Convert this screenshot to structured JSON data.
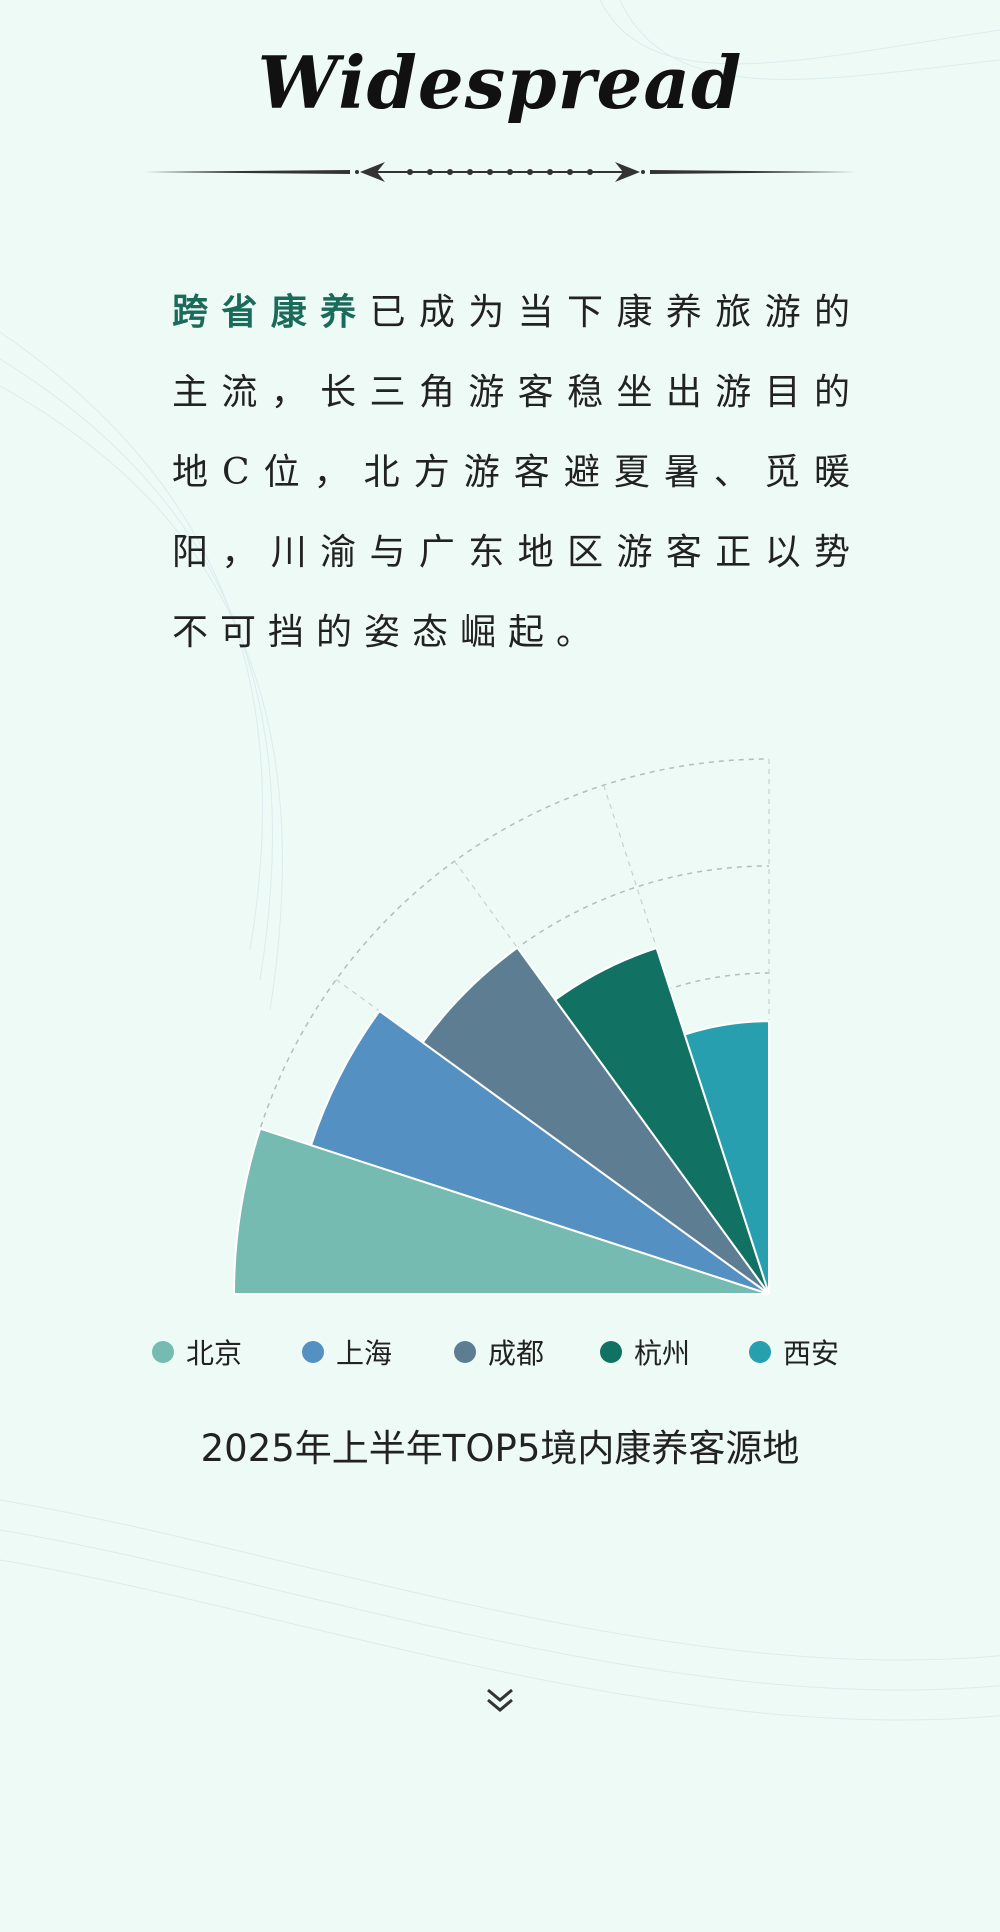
{
  "header": {
    "title": "Widespread"
  },
  "paragraph": {
    "highlight": "跨省康养",
    "text": "已成为当下康养旅游的主流，长三角游客稳坐出游目的地C位，北方游客避夏暑、觅暖阳，川渝与广东地区游客正以势不可挡的姿态崛起。"
  },
  "chart_data": {
    "type": "polar-bar",
    "title": "2025年上半年TOP5境内康养客源地",
    "categories": [
      "北京",
      "上海",
      "成都",
      "杭州",
      "西安"
    ],
    "values": [
      5.0,
      4.5,
      4.0,
      3.4,
      2.55
    ],
    "colors": [
      "#75bbb2",
      "#5490c2",
      "#5d7e92",
      "#117263",
      "#289faf"
    ],
    "radial_grid": [
      3,
      4,
      5
    ],
    "angle_span_degrees": 90,
    "grid": true,
    "legend_position": "bottom"
  },
  "footer": {
    "scroll_icon": "double-chevron-down-icon"
  }
}
